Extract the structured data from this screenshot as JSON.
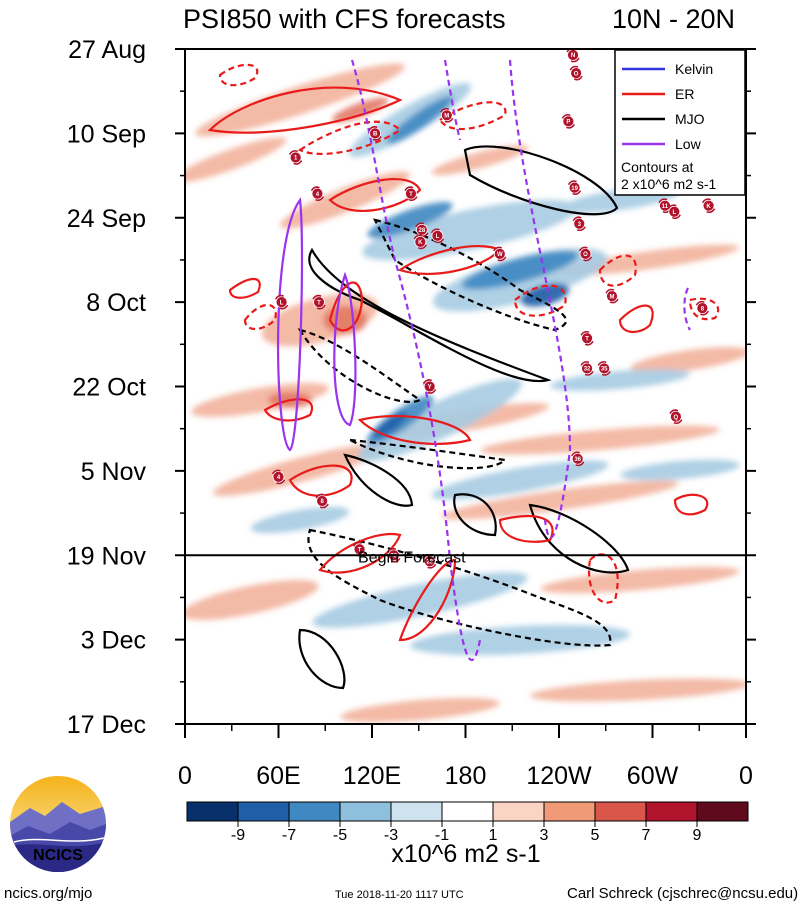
{
  "chart_data": {
    "type": "heatmap",
    "title_left": "PSI850 with CFS forecasts",
    "title_right": "10N - 20N",
    "x_ticks": [
      "0",
      "60E",
      "120E",
      "180",
      "120W",
      "60W",
      "0"
    ],
    "x_tick_lon": [
      0,
      60,
      120,
      180,
      240,
      300,
      360
    ],
    "xlim": [
      0,
      360
    ],
    "y_ticks": [
      "27 Aug",
      "10 Sep",
      "24 Sep",
      "8 Oct",
      "22 Oct",
      "5 Nov",
      "19 Nov",
      "3 Dec",
      "17 Dec"
    ],
    "y_tick_day": [
      0,
      14,
      28,
      42,
      56,
      70,
      84,
      98,
      112
    ],
    "ylim": [
      0,
      112
    ],
    "forecast_start_day": 84,
    "forecast_label": "Begin Forecast",
    "colorbar": {
      "labels": [
        "-9",
        "-7",
        "-5",
        "-3",
        "-1",
        "1",
        "3",
        "5",
        "7",
        "9"
      ],
      "colors": [
        "#08306b",
        "#1f5fa8",
        "#3f88c1",
        "#8ebfdd",
        "#cfe2f0",
        "#ffffff",
        "#fbd5c3",
        "#f09a78",
        "#d9574a",
        "#b0132b",
        "#5f0a1d"
      ],
      "units": "x10^6 m2 s-1"
    },
    "legend": [
      {
        "name": "Kelvin",
        "color": "#3333dd"
      },
      {
        "name": "ER",
        "color": "#e81a1a"
      },
      {
        "name": "MJO",
        "color": "#000000"
      },
      {
        "name": "Low",
        "color": "#9a33ee"
      }
    ],
    "contour_note_1": "Contours at",
    "contour_note_2": "2 x10^6 m2 s-1",
    "storms": [
      {
        "label": "N",
        "lon": 249,
        "day": 1
      },
      {
        "label": "O",
        "lon": 251,
        "day": 4
      },
      {
        "label": "M",
        "lon": 168,
        "day": 11
      },
      {
        "label": "P",
        "lon": 246,
        "day": 12
      },
      {
        "label": "B",
        "lon": 122,
        "day": 14
      },
      {
        "label": "1",
        "lon": 71,
        "day": 18
      },
      {
        "label": "19",
        "lon": 250,
        "day": 23
      },
      {
        "label": "4",
        "lon": 85,
        "day": 24
      },
      {
        "label": "T",
        "lon": 145,
        "day": 24
      },
      {
        "label": "11",
        "lon": 308,
        "day": 26
      },
      {
        "label": "K",
        "lon": 336,
        "day": 26
      },
      {
        "label": "L",
        "lon": 314,
        "day": 27
      },
      {
        "label": "28",
        "lon": 152,
        "day": 30
      },
      {
        "label": "L",
        "lon": 162,
        "day": 31
      },
      {
        "label": "K",
        "lon": 151,
        "day": 32
      },
      {
        "label": "3",
        "lon": 253,
        "day": 29
      },
      {
        "label": "W",
        "lon": 202,
        "day": 34
      },
      {
        "label": "O",
        "lon": 257,
        "day": 34
      },
      {
        "label": "M",
        "lon": 274,
        "day": 41
      },
      {
        "label": "L",
        "lon": 62,
        "day": 42
      },
      {
        "label": "T",
        "lon": 86,
        "day": 42
      },
      {
        "label": "8",
        "lon": 332,
        "day": 43
      },
      {
        "label": "T",
        "lon": 258,
        "day": 48
      },
      {
        "label": "32",
        "lon": 258,
        "day": 53
      },
      {
        "label": "35",
        "lon": 269,
        "day": 53
      },
      {
        "label": "Y",
        "lon": 157,
        "day": 56
      },
      {
        "label": "Q",
        "lon": 315,
        "day": 61
      },
      {
        "label": "36",
        "lon": 252,
        "day": 68
      },
      {
        "label": "4",
        "lon": 60,
        "day": 71
      },
      {
        "label": "8",
        "lon": 88,
        "day": 75
      },
      {
        "label": "T",
        "lon": 112,
        "day": 83
      },
      {
        "label": "30",
        "lon": 134,
        "day": 84
      },
      {
        "label": "28",
        "lon": 157,
        "day": 85
      }
    ]
  },
  "footer": {
    "logo_text": "NCICS",
    "site": "ncics.org/mjo",
    "timestamp": "Tue 2018-11-20 1117 UTC",
    "author": "Carl Schreck (cjschrec@ncsu.edu)"
  }
}
